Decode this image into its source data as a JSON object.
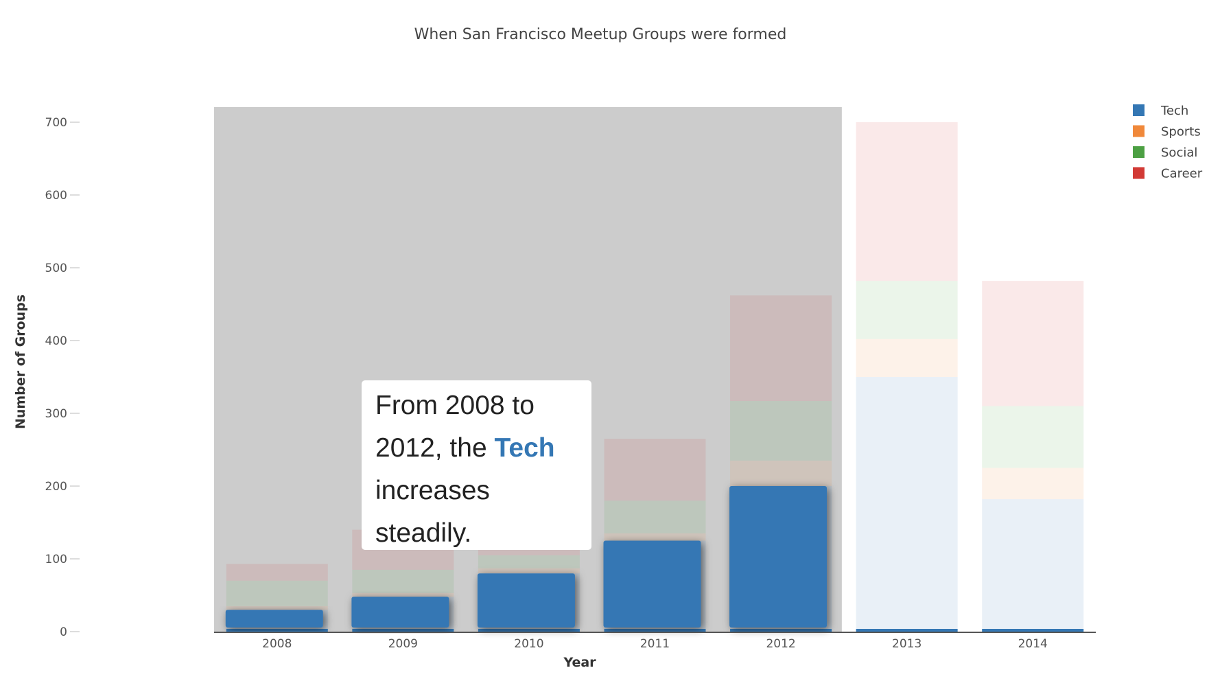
{
  "chart_data": {
    "type": "bar",
    "stacked": true,
    "title": "When San Francisco Meetup Groups were formed",
    "xlabel": "Year",
    "ylabel": "Number of Groups",
    "ylim": [
      0,
      700
    ],
    "yticks": [
      0,
      100,
      200,
      300,
      400,
      500,
      600,
      700
    ],
    "categories": [
      "2008",
      "2009",
      "2010",
      "2011",
      "2012",
      "2013",
      "2014"
    ],
    "series": [
      {
        "name": "Tech",
        "color": "#3477b4",
        "values": [
          30,
          48,
          80,
          125,
          200,
          350,
          182
        ]
      },
      {
        "name": "Sports",
        "color": "#f0883a",
        "values": [
          5,
          5,
          7,
          10,
          35,
          52,
          43
        ]
      },
      {
        "name": "Social",
        "color": "#4ca043",
        "values": [
          35,
          32,
          18,
          45,
          82,
          80,
          85
        ]
      },
      {
        "name": "Career",
        "color": "#d23a35",
        "values": [
          23,
          55,
          30,
          85,
          145,
          218,
          172
        ]
      }
    ],
    "legend_position": "top-right",
    "highlighted_years": [
      "2008",
      "2009",
      "2010",
      "2011",
      "2012"
    ],
    "highlighted_series": "Tech",
    "grid": false
  },
  "annotation": {
    "text_before": "From 2008 to 2012, the ",
    "highlight": "Tech",
    "text_after": " increases steadily."
  }
}
